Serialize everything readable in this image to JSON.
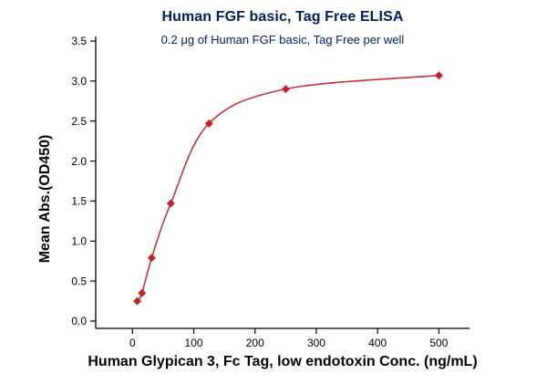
{
  "chart_data": {
    "type": "line",
    "title": "Human FGF basic, Tag Free ELISA",
    "subtitle": "0.2 μg of Human FGF basic, Tag Free per well",
    "xlabel": "Human Glypican 3, Fc Tag, low endotoxin Conc. (ng/mL)",
    "ylabel": "Mean Abs.(OD450)",
    "x": [
      7.8,
      15.6,
      31.3,
      62.5,
      125,
      250,
      500
    ],
    "y": [
      0.25,
      0.35,
      0.79,
      1.47,
      2.47,
      2.9,
      3.07
    ],
    "xlim": [
      -60,
      550
    ],
    "ylim": [
      0,
      3.5
    ],
    "xticks": [
      0,
      100,
      200,
      300,
      400,
      500
    ],
    "yticks": [
      0,
      0.5,
      1,
      1.5,
      2,
      2.5,
      3,
      3.5
    ],
    "grid": false,
    "legend": false,
    "marker": "diamond",
    "colors": {
      "title": "#002060",
      "line": "#C43539",
      "marker": "#BE2327",
      "axis": "#000000"
    }
  }
}
